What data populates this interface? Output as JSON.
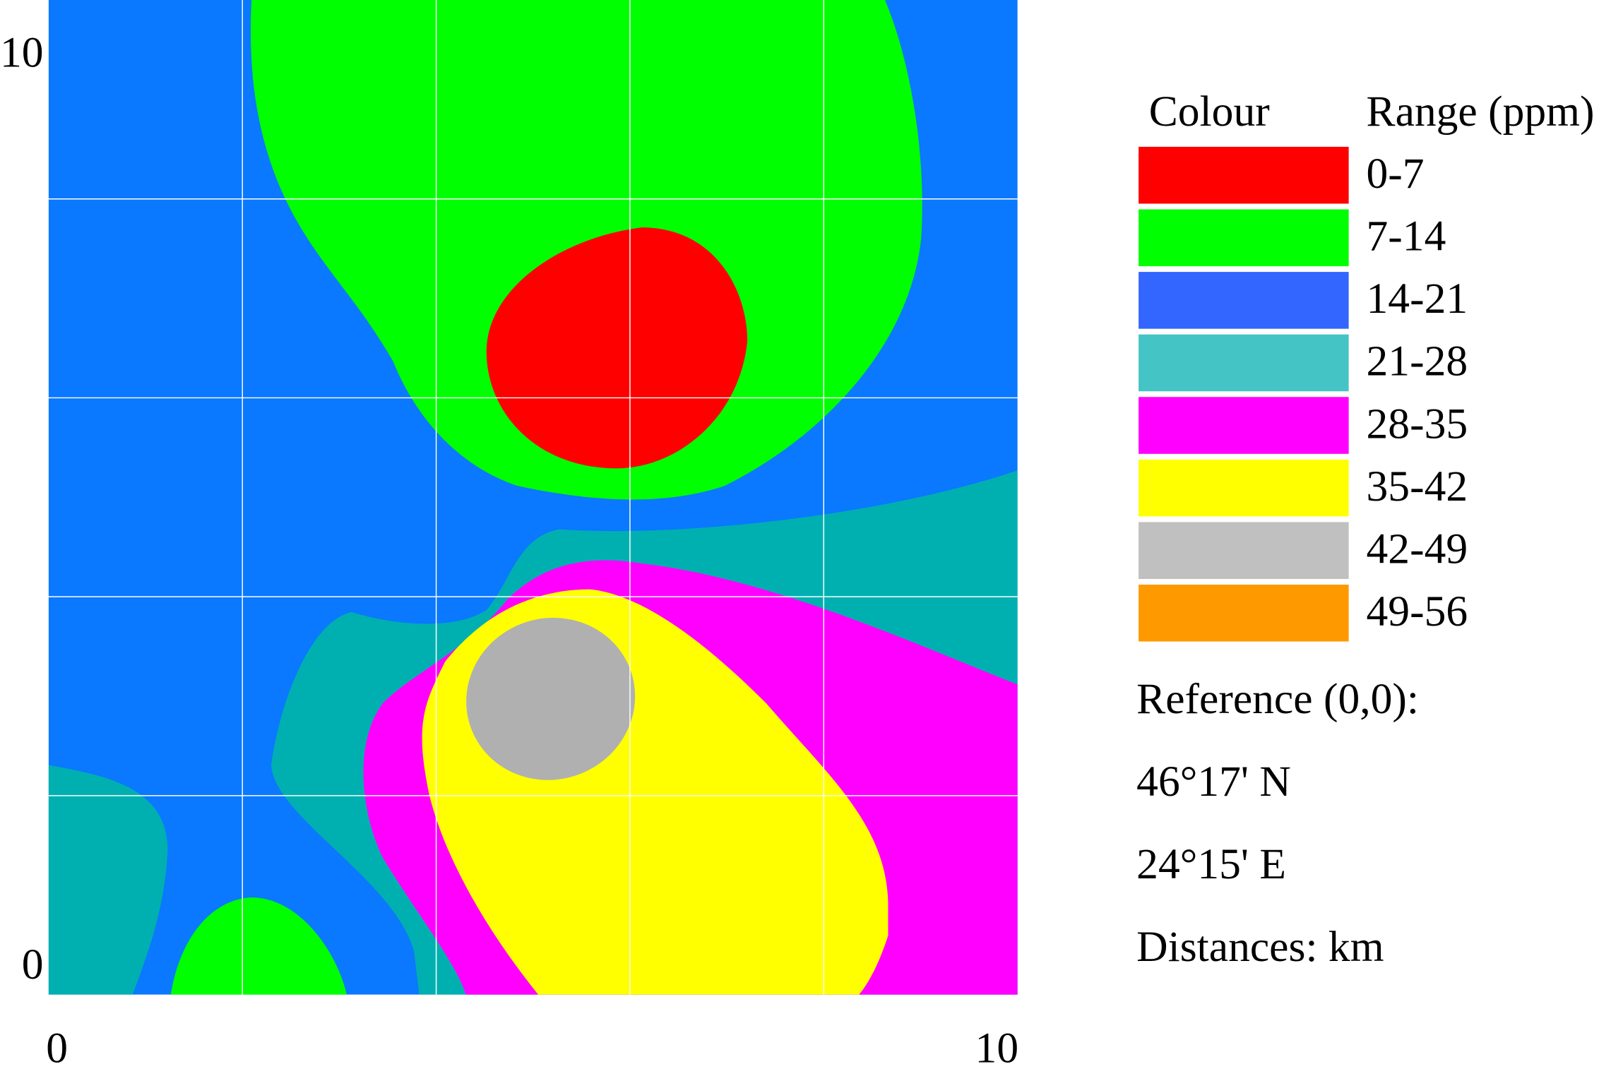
{
  "chart_data": {
    "type": "contour",
    "xlim": [
      0,
      10
    ],
    "ylim": [
      0,
      10
    ],
    "xticks": [
      0,
      10
    ],
    "yticks": [
      0,
      10
    ],
    "grid": true,
    "grid_lines": {
      "x": [
        2,
        4,
        6,
        8
      ],
      "y": [
        2,
        4,
        6,
        8
      ]
    },
    "legend": {
      "headers": [
        "Colour",
        "Range (ppm)"
      ],
      "entries": [
        {
          "label": "0-7",
          "color": "#ff0000"
        },
        {
          "label": "7-14",
          "color": "#00ff00"
        },
        {
          "label": "14-21",
          "color": "#3366ff"
        },
        {
          "label": "21-28",
          "color": "#44c4c4"
        },
        {
          "label": "28-35",
          "color": "#ff00ff"
        },
        {
          "label": "35-42",
          "color": "#ffff00"
        },
        {
          "label": "42-49",
          "color": "#c0c0c0"
        },
        {
          "label": "49-56",
          "color": "#ff9900"
        }
      ]
    },
    "notes": [
      "Reference (0,0):",
      "46°17' N",
      "24°15' E",
      "Distances: km"
    ]
  }
}
